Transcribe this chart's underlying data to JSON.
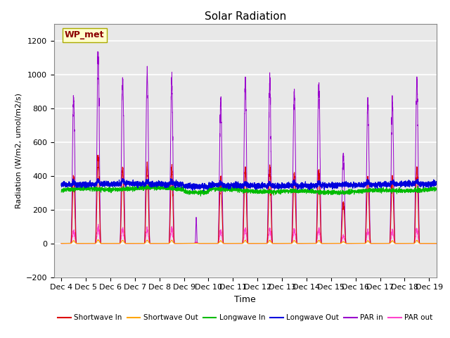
{
  "title": "Solar Radiation",
  "ylabel": "Radiation (W/m2, umol/m2/s)",
  "xlabel": "Time",
  "xlim_days": [
    3.7,
    19.3
  ],
  "ylim": [
    -200,
    1300
  ],
  "yticks": [
    -200,
    0,
    200,
    400,
    600,
    800,
    1000,
    1200
  ],
  "xtick_labels": [
    "Dec 4",
    "Dec 5",
    "Dec 6",
    "Dec 7",
    "Dec 8",
    "Dec 9",
    "Dec 10",
    "Dec 11",
    "Dec 12",
    "Dec 13",
    "Dec 14",
    "Dec 15",
    "Dec 16",
    "Dec 17",
    "Dec 18",
    "Dec 19"
  ],
  "xtick_positions": [
    4,
    5,
    6,
    7,
    8,
    9,
    10,
    11,
    12,
    13,
    14,
    15,
    16,
    17,
    18,
    19
  ],
  "annotation_text": "WP_met",
  "annotation_color": "#8B0000",
  "annotation_bg": "#FFFFCC",
  "annotation_edge": "#AAAA00",
  "bg_color": "#E8E8E8",
  "colors": {
    "shortwave_in": "#DD0000",
    "shortwave_out": "#FFA500",
    "longwave_in": "#00BB00",
    "longwave_out": "#0000DD",
    "par_in": "#9900CC",
    "par_out": "#FF44CC"
  },
  "legend": [
    {
      "label": "Shortwave In",
      "color": "#DD0000",
      "ls": "-"
    },
    {
      "label": "Shortwave Out",
      "color": "#FFA500",
      "ls": "-"
    },
    {
      "label": "Longwave In",
      "color": "#00BB00",
      "ls": "-"
    },
    {
      "label": "Longwave Out",
      "color": "#0000DD",
      "ls": "-"
    },
    {
      "label": "PAR in",
      "color": "#9900CC",
      "ls": "-"
    },
    {
      "label": "PAR out",
      "color": "#FF44CC",
      "ls": "-"
    }
  ],
  "par_in_peaks": {
    "4": 860,
    "5": 1100,
    "6": 980,
    "7": 1010,
    "8": 950,
    "9": 60,
    "10": 840,
    "11": 960,
    "12": 950,
    "13": 900,
    "14": 950,
    "15": 530,
    "16": 840,
    "17": 830,
    "18": 960
  },
  "longwave_base_in": 315,
  "longwave_base_out": 345
}
